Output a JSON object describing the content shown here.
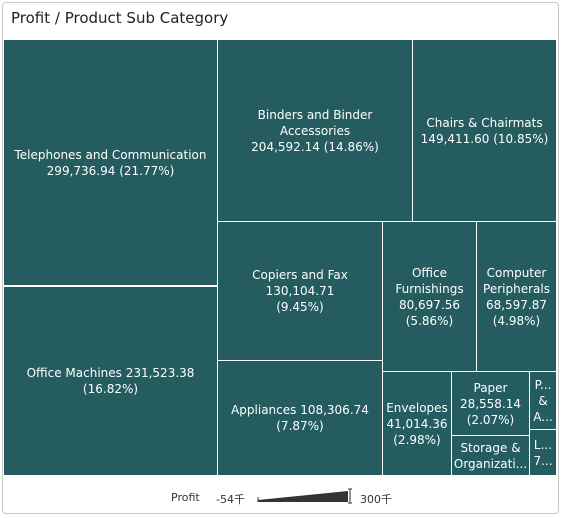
{
  "title": "Profit / Product Sub Category",
  "chart_data": {
    "type": "treemap",
    "title": "Profit / Product Sub Category",
    "size_measure": "Profit",
    "color_measure": "Profit",
    "items": [
      {
        "name": "Telephones and Communication",
        "value": 299736.94,
        "pct": 21.77,
        "value_label": "299,736.94",
        "pct_label": "(21.77%)"
      },
      {
        "name": "Office Machines",
        "value": 231523.38,
        "pct": 16.82,
        "value_label": "231,523.38",
        "pct_label": "(16.82%)"
      },
      {
        "name": "Binders and Binder Accessories",
        "value": 204592.14,
        "pct": 14.86,
        "value_label": "204,592.14",
        "pct_label": "(14.86%)"
      },
      {
        "name": "Chairs & Chairmats",
        "value": 149411.6,
        "pct": 10.85,
        "value_label": "149,411.60",
        "pct_label": "(10.85%)"
      },
      {
        "name": "Copiers and Fax",
        "value": 130104.71,
        "pct": 9.45,
        "value_label": "130,104.71",
        "pct_label": "(9.45%)"
      },
      {
        "name": "Appliances",
        "value": 108306.74,
        "pct": 7.87,
        "value_label": "108,306.74",
        "pct_label": "(7.87%)"
      },
      {
        "name": "Office Furnishings",
        "value": 80697.56,
        "pct": 5.86,
        "value_label": "80,697.56",
        "pct_label": "(5.86%)"
      },
      {
        "name": "Computer Peripherals",
        "value": 68597.87,
        "pct": 4.98,
        "value_label": "68,597.87",
        "pct_label": "(4.98%)"
      },
      {
        "name": "Envelopes",
        "value": 41014.36,
        "pct": 2.98,
        "value_label": "41,014.36",
        "pct_label": "(2.98%)"
      },
      {
        "name": "Paper",
        "value": 28558.14,
        "pct": 2.07,
        "value_label": "28,558.14",
        "pct_label": "(2.07%)"
      },
      {
        "name": "Storage & Organization",
        "value": null,
        "pct": null,
        "display_text": "Storage & Organizati..."
      },
      {
        "name": "P...",
        "value": null,
        "pct": null,
        "display_text": "P... & A..."
      },
      {
        "name": "L...",
        "value": null,
        "pct": null,
        "display_text": "L... 7..."
      }
    ],
    "legend": {
      "label": "Profit",
      "min_label": "-54千",
      "max_label": "300千",
      "color": "#245c5f"
    }
  }
}
